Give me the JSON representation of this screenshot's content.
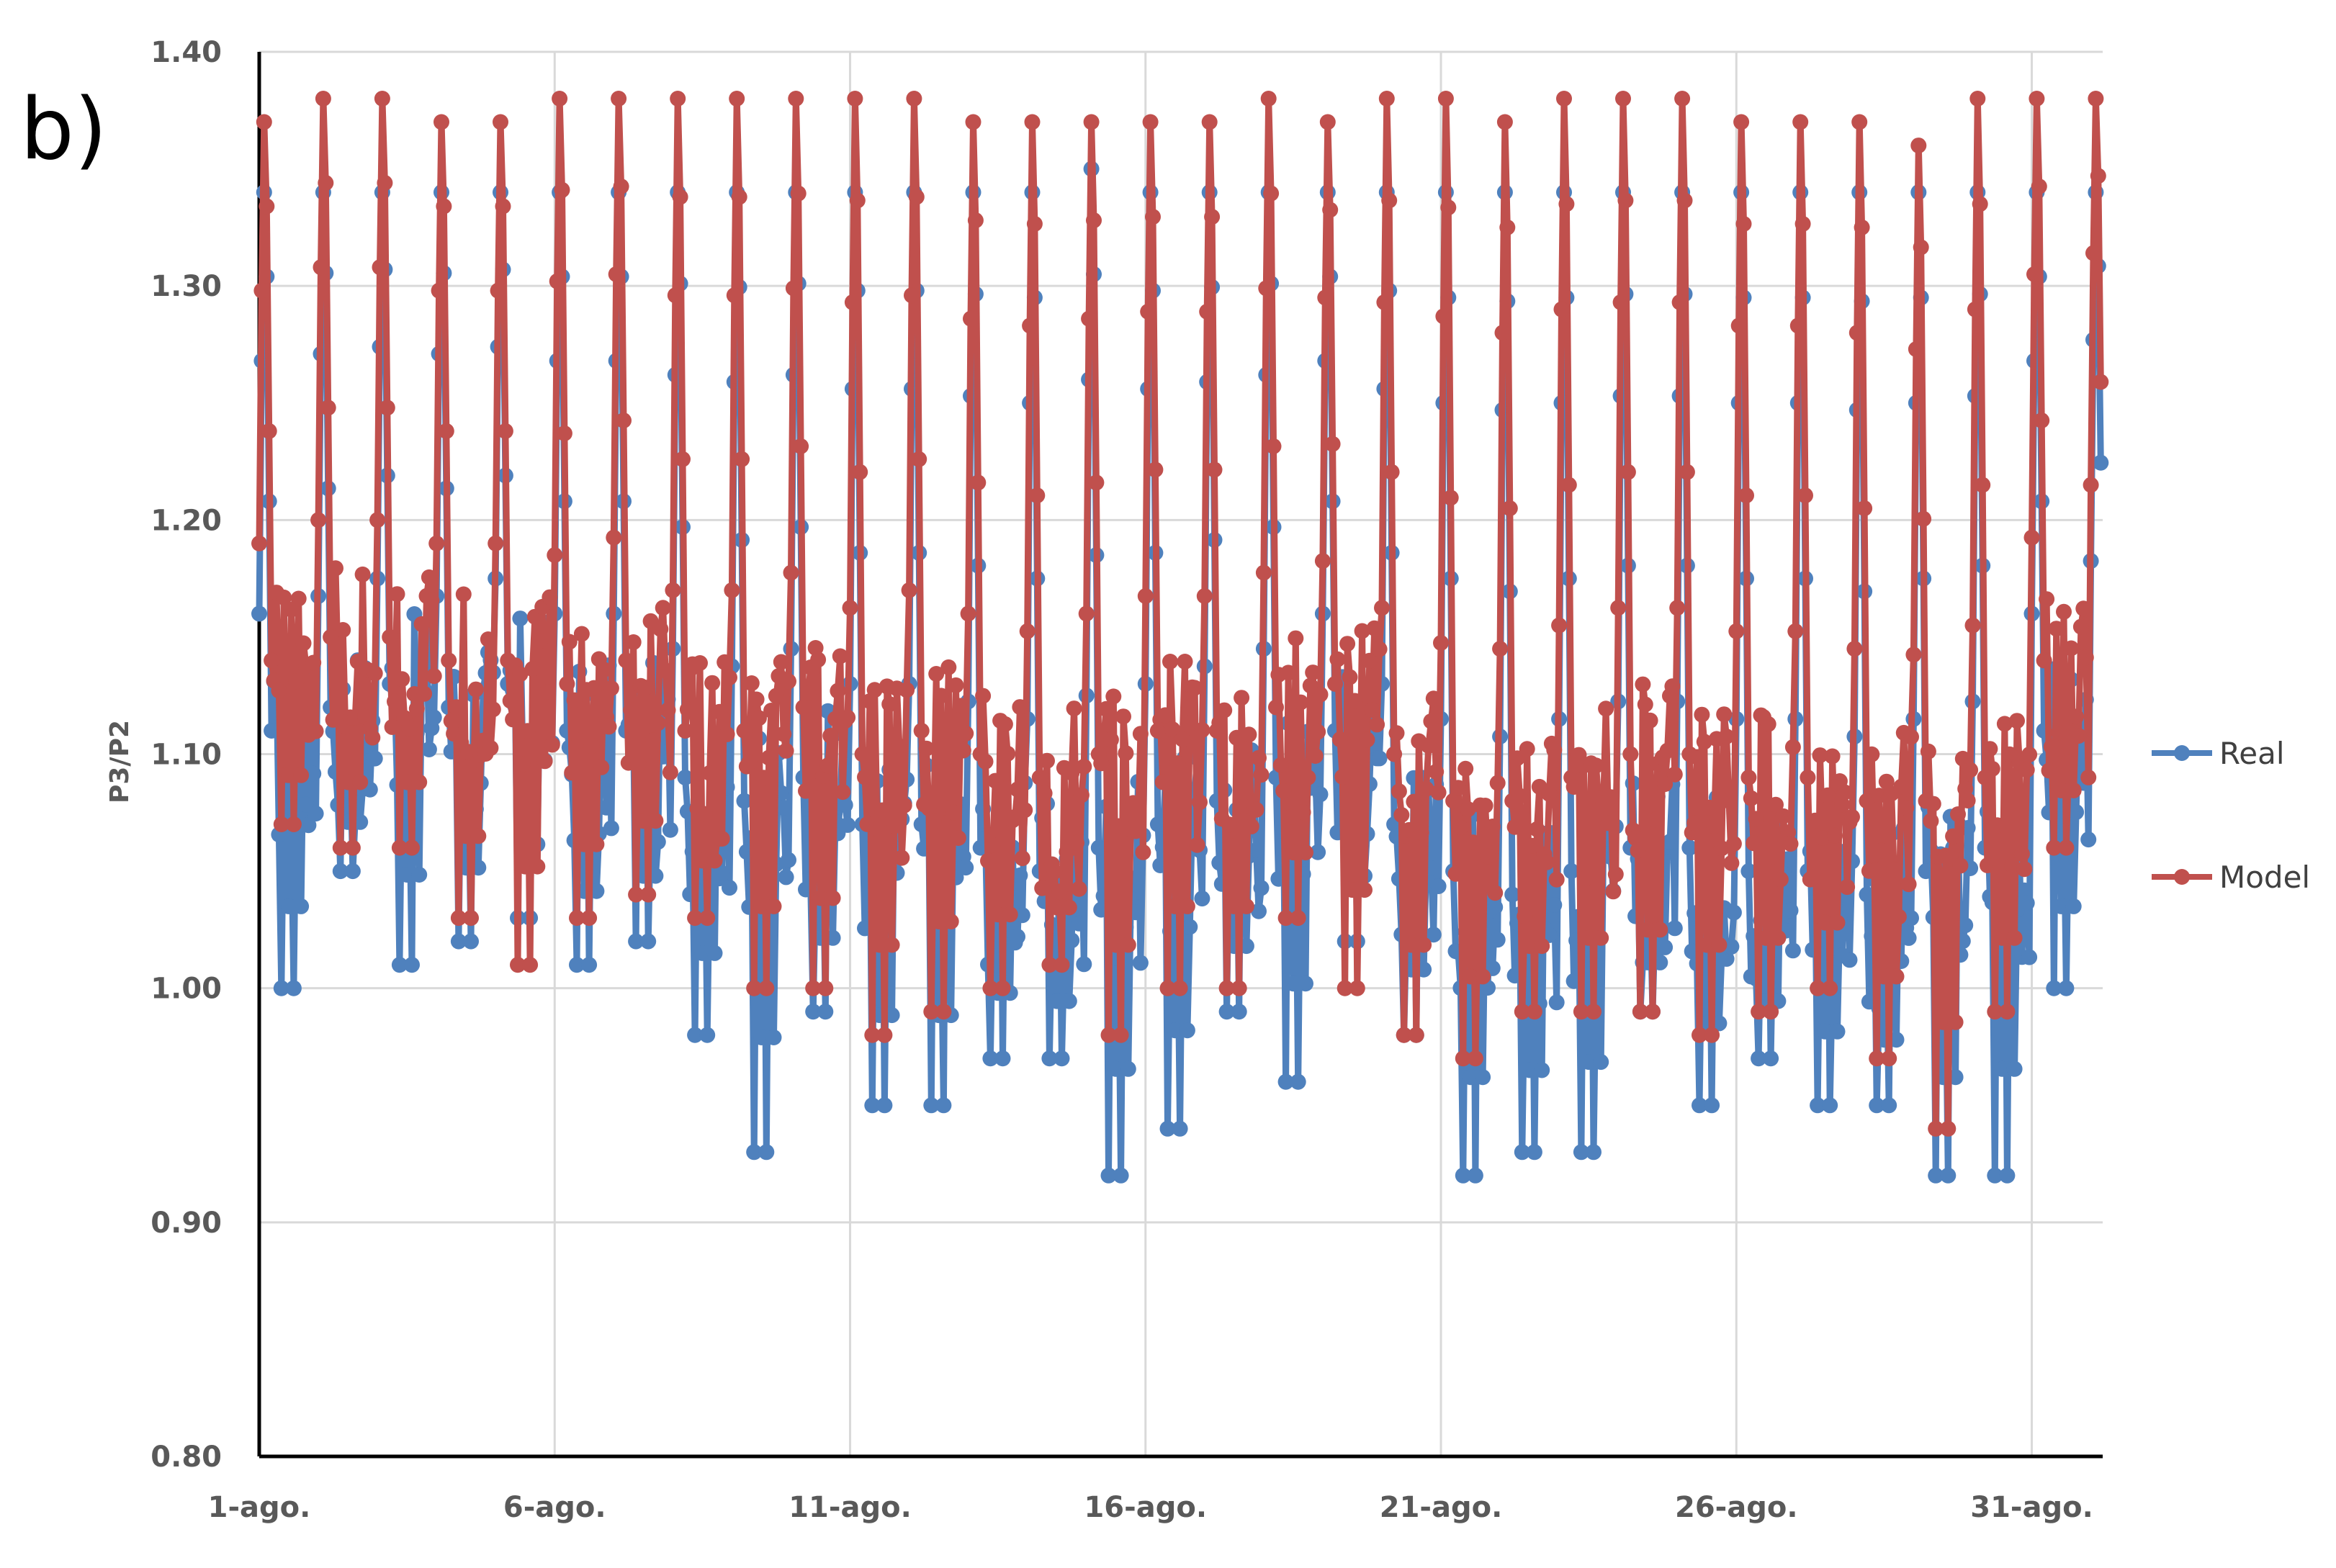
{
  "panel_label": "b)",
  "chart_data": {
    "type": "line",
    "title": "",
    "xlabel": "",
    "ylabel": "P3/P2",
    "ylim": [
      0.8,
      1.4
    ],
    "yticks": [
      "0.80",
      "0.90",
      "1.00",
      "1.10",
      "1.20",
      "1.30",
      "1.40"
    ],
    "x_unit": "days since 1-ago.",
    "xlim": [
      0,
      31.2
    ],
    "xticks": [
      {
        "label": "1-ago.",
        "day": 0
      },
      {
        "label": "6-ago.",
        "day": 5
      },
      {
        "label": "11-ago.",
        "day": 10
      },
      {
        "label": "16-ago.",
        "day": 15
      },
      {
        "label": "21-ago.",
        "day": 20
      },
      {
        "label": "26-ago.",
        "day": 25
      },
      {
        "label": "31-ago.",
        "day": 30
      }
    ],
    "grid": true,
    "legend_position": "right",
    "samples_per_day": 24,
    "series": [
      {
        "name": "Real",
        "color": "#4f81bd",
        "daily_peak": [
          1.34,
          1.34,
          1.34,
          1.34,
          1.34,
          1.34,
          1.34,
          1.34,
          1.34,
          1.34,
          1.34,
          1.34,
          1.34,
          1.34,
          1.35,
          1.34,
          1.34,
          1.34,
          1.34,
          1.34,
          1.34,
          1.34,
          1.34,
          1.34,
          1.34,
          1.34,
          1.34,
          1.34,
          1.34,
          1.34,
          1.34,
          1.34
        ],
        "daily_low": [
          1.0,
          1.05,
          1.01,
          1.02,
          1.03,
          1.01,
          1.02,
          0.98,
          0.93,
          0.99,
          0.95,
          0.95,
          0.97,
          0.97,
          0.92,
          0.94,
          0.99,
          0.96,
          1.02,
          0.98,
          0.92,
          0.93,
          0.93,
          0.99,
          0.95,
          0.97,
          0.95,
          0.95,
          0.92,
          0.92,
          1.0,
          1.07
        ],
        "daily_base": [
          1.1,
          1.11,
          1.12,
          1.11,
          1.12,
          1.1,
          1.1,
          1.08,
          1.07,
          1.08,
          1.06,
          1.06,
          1.05,
          1.04,
          1.05,
          1.06,
          1.07,
          1.08,
          1.1,
          1.06,
          1.04,
          1.03,
          1.04,
          1.05,
          1.05,
          1.04,
          1.04,
          1.03,
          1.04,
          1.05,
          1.1,
          1.13
        ]
      },
      {
        "name": "Model",
        "color": "#c0504d",
        "daily_peak": [
          1.37,
          1.38,
          1.38,
          1.37,
          1.37,
          1.38,
          1.38,
          1.38,
          1.38,
          1.38,
          1.38,
          1.38,
          1.37,
          1.37,
          1.37,
          1.37,
          1.37,
          1.38,
          1.37,
          1.38,
          1.38,
          1.37,
          1.38,
          1.38,
          1.38,
          1.37,
          1.37,
          1.37,
          1.36,
          1.38,
          1.38,
          1.38
        ],
        "daily_low": [
          1.07,
          1.06,
          1.06,
          1.03,
          1.01,
          1.03,
          1.04,
          1.03,
          1.0,
          1.0,
          0.98,
          0.99,
          1.0,
          1.01,
          0.98,
          1.0,
          1.0,
          1.03,
          1.0,
          0.98,
          0.97,
          0.99,
          0.99,
          0.99,
          0.98,
          0.99,
          1.0,
          0.97,
          0.94,
          0.99,
          1.06,
          1.07
        ],
        "daily_base": [
          1.13,
          1.14,
          1.14,
          1.13,
          1.13,
          1.12,
          1.13,
          1.1,
          1.1,
          1.11,
          1.09,
          1.1,
          1.09,
          1.08,
          1.09,
          1.1,
          1.1,
          1.11,
          1.12,
          1.09,
          1.07,
          1.07,
          1.08,
          1.09,
          1.09,
          1.08,
          1.08,
          1.07,
          1.07,
          1.08,
          1.13,
          1.16
        ]
      }
    ]
  }
}
